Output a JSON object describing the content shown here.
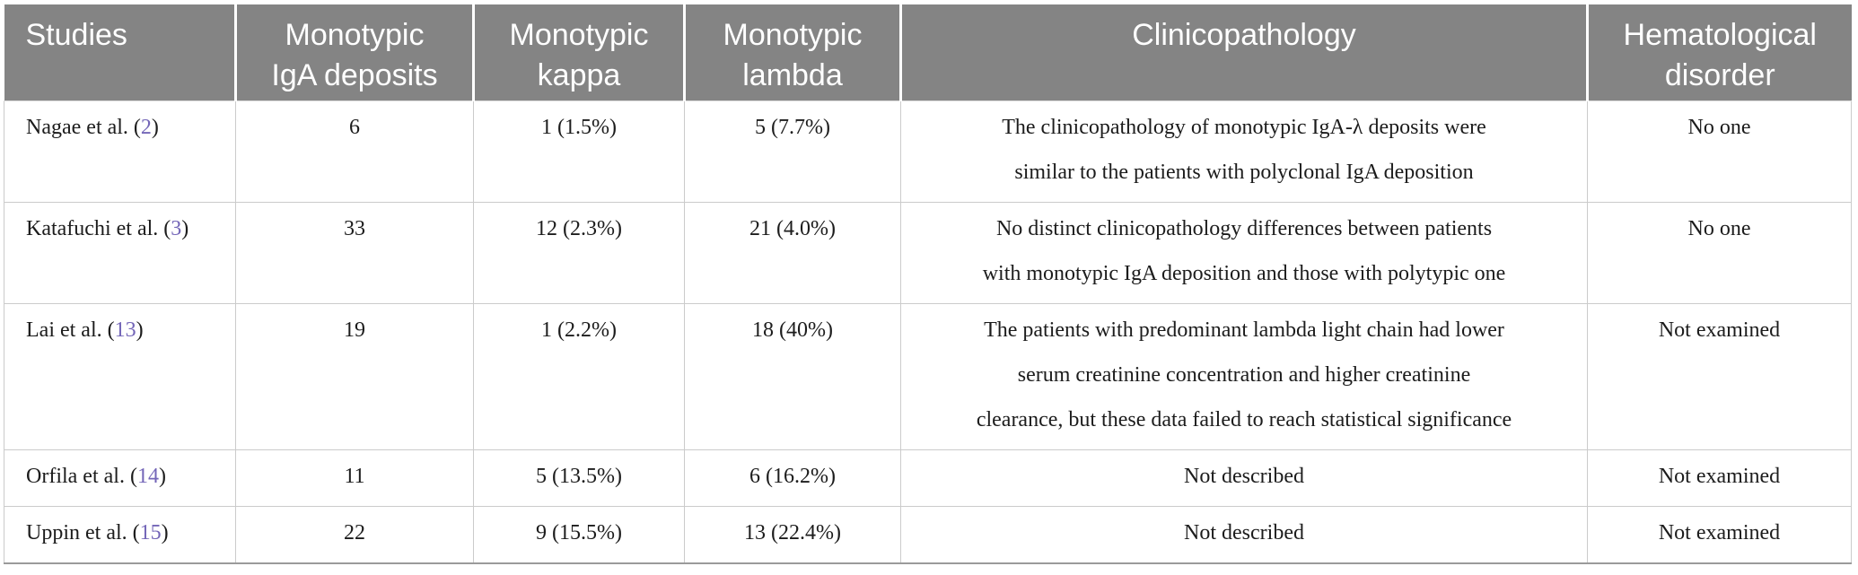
{
  "colors": {
    "header_bg": "#848484",
    "header_text": "#ffffff",
    "citation_link": "#7466b8",
    "grid_line": "#cbcbcb",
    "table_bottom_border": "#9a9a9a",
    "body_text": "#1c1c1c"
  },
  "table": {
    "columns": [
      {
        "lines": [
          "Studies"
        ]
      },
      {
        "lines": [
          "Monotypic",
          "IgA deposits"
        ]
      },
      {
        "lines": [
          "Monotypic",
          "kappa"
        ]
      },
      {
        "lines": [
          "Monotypic",
          "lambda"
        ]
      },
      {
        "lines": [
          "Clinicopathology"
        ]
      },
      {
        "lines": [
          "Hematological",
          "disorder"
        ]
      }
    ],
    "rows": [
      {
        "study": {
          "prefix": "Nagae et al. (",
          "ref": "2",
          "suffix": ")"
        },
        "monotypic_iga_deposits": "6",
        "monotypic_kappa": "1 (1.5%)",
        "monotypic_lambda": "5 (7.7%)",
        "clinicopathology": [
          "The clinicopathology of monotypic IgA-λ deposits were",
          "similar to the patients with polyclonal IgA deposition"
        ],
        "hematological_disorder": "No one"
      },
      {
        "study": {
          "prefix": "Katafuchi et al. (",
          "ref": "3",
          "suffix": ")"
        },
        "monotypic_iga_deposits": "33",
        "monotypic_kappa": "12 (2.3%)",
        "monotypic_lambda": "21 (4.0%)",
        "clinicopathology": [
          "No distinct clinicopathology differences between patients",
          "with monotypic IgA deposition and those with polytypic one"
        ],
        "hematological_disorder": "No one"
      },
      {
        "study": {
          "prefix": "Lai et al. (",
          "ref": "13",
          "suffix": ")"
        },
        "monotypic_iga_deposits": "19",
        "monotypic_kappa": "1 (2.2%)",
        "monotypic_lambda": "18 (40%)",
        "clinicopathology": [
          "The patients with predominant lambda light chain had lower",
          "serum creatinine concentration and higher creatinine",
          "clearance, but these data failed to reach statistical significance"
        ],
        "hematological_disorder": "Not examined"
      },
      {
        "study": {
          "prefix": "Orfila et al. (",
          "ref": "14",
          "suffix": ")"
        },
        "monotypic_iga_deposits": "11",
        "monotypic_kappa": "5 (13.5%)",
        "monotypic_lambda": "6 (16.2%)",
        "clinicopathology": "Not described",
        "hematological_disorder": "Not examined"
      },
      {
        "study": {
          "prefix": "Uppin et al. (",
          "ref": "15",
          "suffix": ")"
        },
        "monotypic_iga_deposits": "22",
        "monotypic_kappa": "9 (15.5%)",
        "monotypic_lambda": "13 (22.4%)",
        "clinicopathology": "Not described",
        "hematological_disorder": "Not examined"
      }
    ]
  }
}
